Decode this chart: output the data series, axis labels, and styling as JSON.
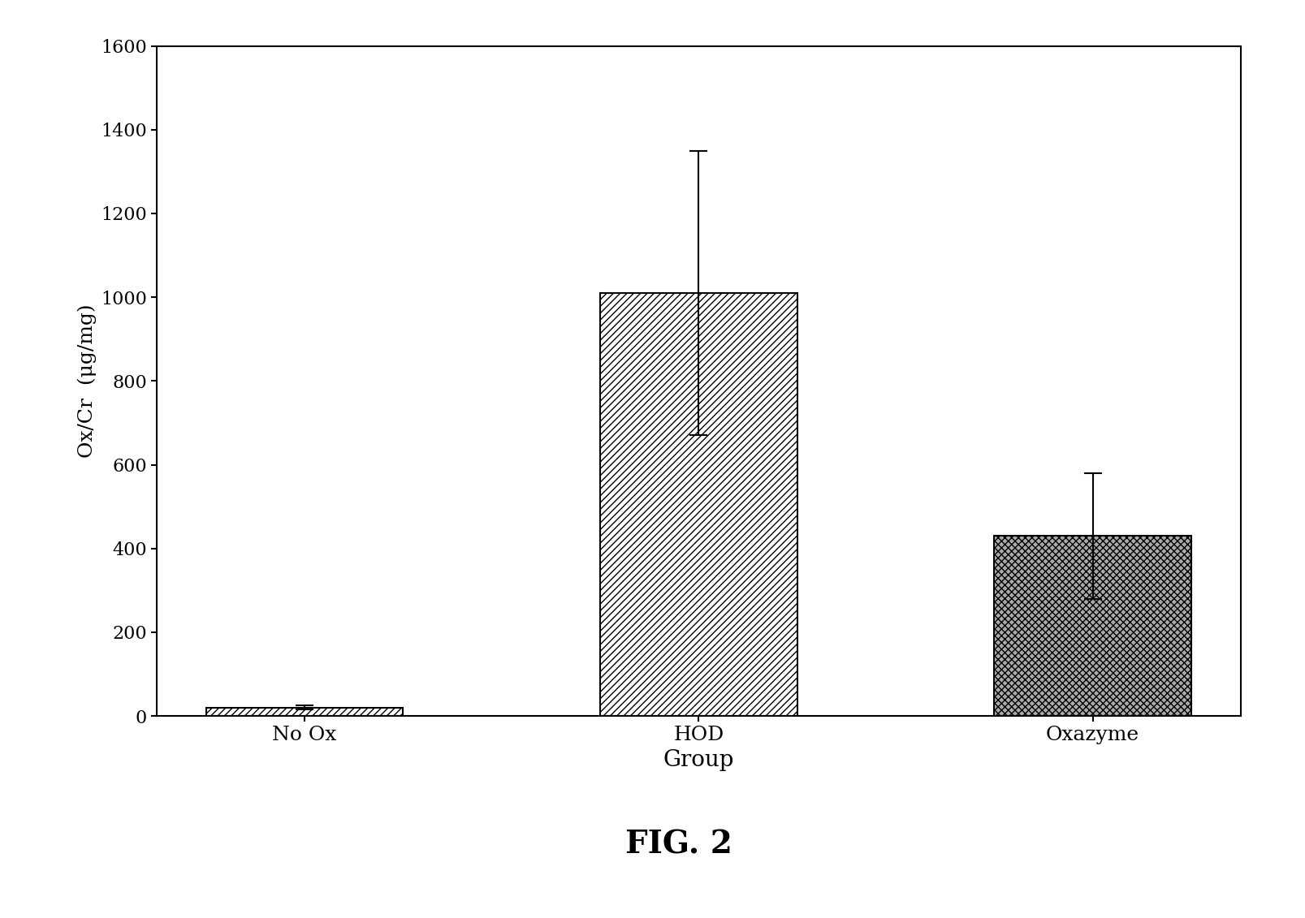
{
  "categories": [
    "No Ox",
    "HOD",
    "Oxazyme"
  ],
  "values": [
    20,
    1010,
    430
  ],
  "errors": [
    5,
    340,
    150
  ],
  "ylabel": "Ox/Cr  (μg/mg)",
  "xlabel": "Group",
  "title": "FIG. 2",
  "ylim": [
    0,
    1600
  ],
  "yticks": [
    0,
    200,
    400,
    600,
    800,
    1000,
    1200,
    1400,
    1600
  ],
  "bar_width": 0.5,
  "background_color": "#ffffff",
  "bar_edge_color": "#000000",
  "hatch_patterns": [
    "////",
    "////",
    "xxxx"
  ],
  "bar_colors": [
    "#ffffff",
    "#ffffff",
    "#aaaaaa"
  ]
}
